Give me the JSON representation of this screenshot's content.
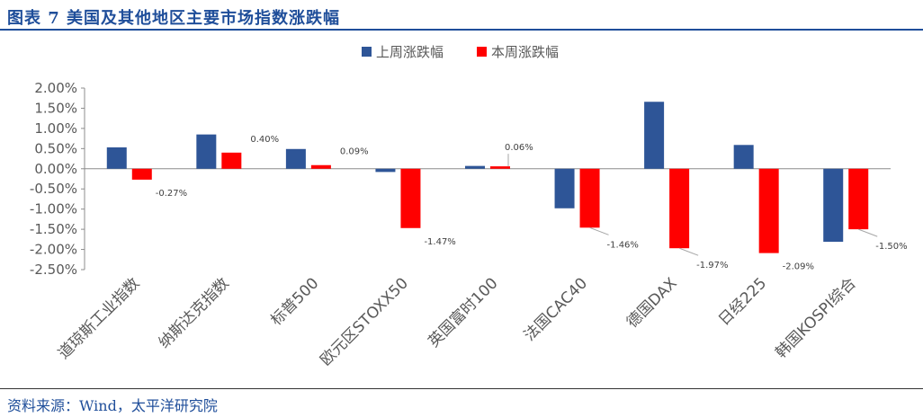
{
  "header": {
    "title": "图表 7 美国及其他地区主要市场指数涨跌幅"
  },
  "footer": {
    "source": "资料来源：Wind，太平洋研究院"
  },
  "colors": {
    "last_week": "#2e5597",
    "this_week": "#ff0000",
    "title": "#1f4e9a"
  },
  "chart_data": {
    "type": "bar",
    "categories": [
      "道琼斯工业指数",
      "纳斯达克指数",
      "标普500",
      "欧元区STOXX50",
      "英国富时100",
      "法国CAC40",
      "德国DAX",
      "日经225",
      "韩国KOSPI综合"
    ],
    "series": [
      {
        "name": "上周涨跌幅",
        "values": [
          0.53,
          0.85,
          0.49,
          -0.08,
          0.07,
          -0.98,
          1.66,
          0.59,
          -1.81
        ]
      },
      {
        "name": "本周涨跌幅",
        "values": [
          -0.27,
          0.4,
          0.09,
          -1.47,
          0.06,
          -1.46,
          -1.97,
          -2.09,
          -1.5
        ]
      }
    ],
    "data_labels": [
      "-0.27%",
      "0.40%",
      "0.09%",
      "-1.47%",
      "0.06%",
      "-1.46%",
      "-1.97%",
      "-2.09%",
      "-1.50%"
    ],
    "y_ticks": [
      "2.00%",
      "1.50%",
      "1.00%",
      "0.50%",
      "0.00%",
      "-0.50%",
      "-1.00%",
      "-1.50%",
      "-2.00%",
      "-2.50%"
    ],
    "ylim": [
      -2.5,
      2.0
    ],
    "legend_position": "top-center",
    "grid": false
  }
}
